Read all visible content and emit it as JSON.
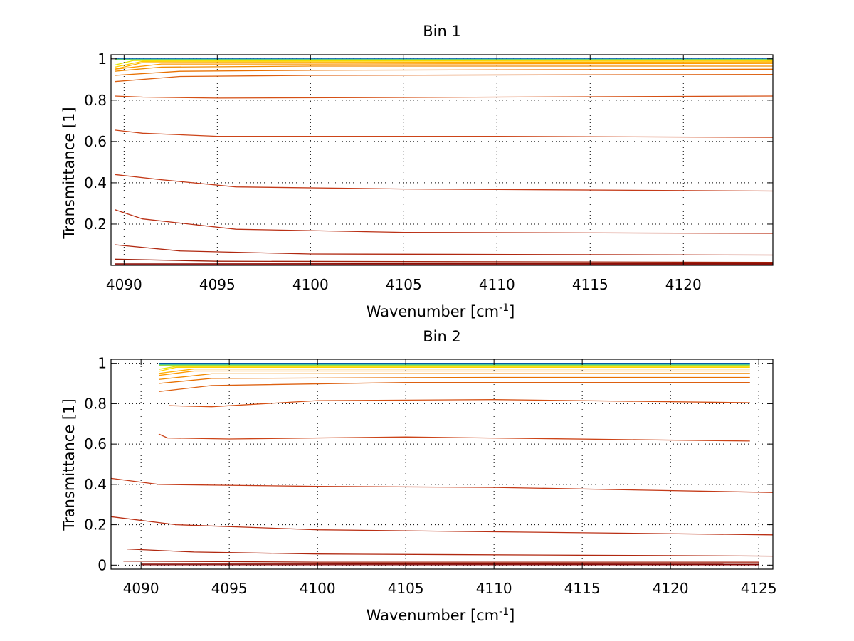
{
  "figure": {
    "background": "#ffffff"
  },
  "chart_data": [
    {
      "type": "line",
      "title": "Bin 1",
      "xlabel": "Wavenumber [cm",
      "xlabel_sup": "-1",
      "xlabel_end": "]",
      "ylabel": "Transmittance [1]",
      "xlim": [
        4089.3,
        4124.8
      ],
      "ylim": [
        0,
        1.02
      ],
      "xticks": [
        4090,
        4095,
        4100,
        4105,
        4110,
        4115,
        4120
      ],
      "yticks": [
        0.2,
        0.4,
        0.6,
        0.8,
        1
      ],
      "ytick_labels": [
        "0.2",
        "0.4",
        "0.6",
        "0.8",
        "1"
      ],
      "grid": true,
      "colormap": "jet",
      "series": [
        {
          "color": "#00509e",
          "x": [
            4089.5,
            4124.8
          ],
          "y": [
            1.0,
            1.0
          ]
        },
        {
          "color": "#1e9fd8",
          "x": [
            4089.5,
            4124.8
          ],
          "y": [
            0.998,
            0.998
          ]
        },
        {
          "color": "#3fc4a0",
          "x": [
            4089.5,
            4124.8
          ],
          "y": [
            0.997,
            0.997
          ]
        },
        {
          "color": "#9fdc40",
          "x": [
            4089.5,
            4124.8
          ],
          "y": [
            0.995,
            0.996
          ]
        },
        {
          "color": "#e6e600",
          "x": [
            4089.5,
            4090.5,
            4124.8
          ],
          "y": [
            0.97,
            0.992,
            0.994
          ]
        },
        {
          "color": "#ffd000",
          "x": [
            4089.5,
            4091,
            4124.8
          ],
          "y": [
            0.96,
            0.988,
            0.99
          ]
        },
        {
          "color": "#ffb000",
          "x": [
            4089.5,
            4091,
            4124.8
          ],
          "y": [
            0.95,
            0.982,
            0.985
          ]
        },
        {
          "color": "#ff9a00",
          "x": [
            4089.5,
            4092,
            4100,
            4124.8
          ],
          "y": [
            0.95,
            0.975,
            0.975,
            0.978
          ]
        },
        {
          "color": "#f08a00",
          "x": [
            4089.5,
            4092,
            4100,
            4124.8
          ],
          "y": [
            0.94,
            0.96,
            0.965,
            0.965
          ]
        },
        {
          "color": "#e87000",
          "x": [
            4089.5,
            4093,
            4100,
            4124.8
          ],
          "y": [
            0.92,
            0.94,
            0.945,
            0.95
          ]
        },
        {
          "color": "#dd6010",
          "x": [
            4089.5,
            4093,
            4100,
            4124.8
          ],
          "y": [
            0.89,
            0.915,
            0.92,
            0.925
          ]
        },
        {
          "color": "#d55015",
          "x": [
            4089.5,
            4091,
            4095,
            4110,
            4124.8
          ],
          "y": [
            0.82,
            0.815,
            0.81,
            0.815,
            0.82
          ]
        },
        {
          "color": "#cc4418",
          "x": [
            4089.5,
            4091,
            4095,
            4110,
            4124.8
          ],
          "y": [
            0.655,
            0.64,
            0.625,
            0.625,
            0.62
          ]
        },
        {
          "color": "#c43a18",
          "x": [
            4089.5,
            4092,
            4096,
            4105,
            4124.8
          ],
          "y": [
            0.44,
            0.415,
            0.38,
            0.37,
            0.36
          ]
        },
        {
          "color": "#ba3015",
          "x": [
            4089.5,
            4091,
            4096,
            4105,
            4124.8
          ],
          "y": [
            0.27,
            0.225,
            0.175,
            0.16,
            0.155
          ]
        },
        {
          "color": "#b02810",
          "x": [
            4089.5,
            4093,
            4100,
            4124.8
          ],
          "y": [
            0.1,
            0.07,
            0.055,
            0.05
          ]
        },
        {
          "color": "#a01e0a",
          "x": [
            4089.5,
            4095,
            4124.8
          ],
          "y": [
            0.03,
            0.02,
            0.015
          ]
        },
        {
          "color": "#8a1005",
          "x": [
            4089.5,
            4124.8
          ],
          "y": [
            0.01,
            0.008
          ]
        },
        {
          "color": "#800000",
          "x": [
            4089.5,
            4124.8
          ],
          "y": [
            0.004,
            0.004
          ]
        }
      ]
    },
    {
      "type": "line",
      "title": "Bin 2",
      "xlabel": "Wavenumber [cm",
      "xlabel_sup": "-1",
      "xlabel_end": "]",
      "ylabel": "Transmittance [1]",
      "xlim": [
        4088.3,
        4125.8
      ],
      "ylim": [
        -0.02,
        1.02
      ],
      "xticks": [
        4090,
        4095,
        4100,
        4105,
        4110,
        4115,
        4120,
        4125
      ],
      "yticks": [
        0,
        0.2,
        0.4,
        0.6,
        0.8,
        1
      ],
      "ytick_labels": [
        "0",
        "0.2",
        "0.4",
        "0.6",
        "0.8",
        "1"
      ],
      "grid": true,
      "colormap": "jet",
      "series": [
        {
          "color": "#00509e",
          "x": [
            4091,
            4124.5
          ],
          "y": [
            1.0,
            1.0
          ]
        },
        {
          "color": "#1e9fd8",
          "x": [
            4091,
            4124.5
          ],
          "y": [
            0.997,
            0.997
          ]
        },
        {
          "color": "#3fc4a0",
          "x": [
            4091,
            4124.5
          ],
          "y": [
            0.993,
            0.994
          ]
        },
        {
          "color": "#9fdc40",
          "x": [
            4091,
            4124.5
          ],
          "y": [
            0.99,
            0.99
          ]
        },
        {
          "color": "#e6e600",
          "x": [
            4091,
            4092,
            4124.5
          ],
          "y": [
            0.97,
            0.985,
            0.985
          ]
        },
        {
          "color": "#ffd000",
          "x": [
            4091,
            4092,
            4124.5
          ],
          "y": [
            0.96,
            0.98,
            0.98
          ]
        },
        {
          "color": "#ffb000",
          "x": [
            4091,
            4093,
            4124.5
          ],
          "y": [
            0.95,
            0.972,
            0.972
          ]
        },
        {
          "color": "#ff9a00",
          "x": [
            4091,
            4093,
            4124.5
          ],
          "y": [
            0.94,
            0.962,
            0.962
          ]
        },
        {
          "color": "#f08a00",
          "x": [
            4091,
            4094,
            4124.5
          ],
          "y": [
            0.92,
            0.948,
            0.95
          ]
        },
        {
          "color": "#e87000",
          "x": [
            4091,
            4094,
            4110,
            4124.5
          ],
          "y": [
            0.9,
            0.925,
            0.93,
            0.93
          ]
        },
        {
          "color": "#dd6010",
          "x": [
            4091,
            4094,
            4105,
            4124.5
          ],
          "y": [
            0.86,
            0.89,
            0.905,
            0.905
          ]
        },
        {
          "color": "#d55015",
          "x": [
            4091.6,
            4094,
            4100,
            4110,
            4124.5
          ],
          "y": [
            0.79,
            0.785,
            0.815,
            0.82,
            0.805
          ]
        },
        {
          "color": "#cc4418",
          "x": [
            4091,
            4091.5,
            4095,
            4105,
            4124.5
          ],
          "y": [
            0.65,
            0.63,
            0.625,
            0.635,
            0.615
          ]
        },
        {
          "color": "#c43a18",
          "x": [
            4088.3,
            4091,
            4100,
            4110,
            4125.8
          ],
          "y": [
            0.43,
            0.4,
            0.39,
            0.385,
            0.36
          ]
        },
        {
          "color": "#ba3015",
          "x": [
            4088.3,
            4092,
            4100,
            4110,
            4125.8
          ],
          "y": [
            0.24,
            0.2,
            0.175,
            0.165,
            0.15
          ]
        },
        {
          "color": "#b02810",
          "x": [
            4089.2,
            4093,
            4100,
            4125.8
          ],
          "y": [
            0.08,
            0.065,
            0.055,
            0.045
          ]
        },
        {
          "color": "#a01e0a",
          "x": [
            4089,
            4100,
            4125
          ],
          "y": [
            0.02,
            0.015,
            0.015
          ]
        },
        {
          "color": "#8a1005",
          "x": [
            4090,
            4125
          ],
          "y": [
            0.008,
            0.005
          ]
        },
        {
          "color": "#800000",
          "x": [
            4090,
            4125
          ],
          "y": [
            0.002,
            0.002
          ]
        }
      ]
    }
  ]
}
